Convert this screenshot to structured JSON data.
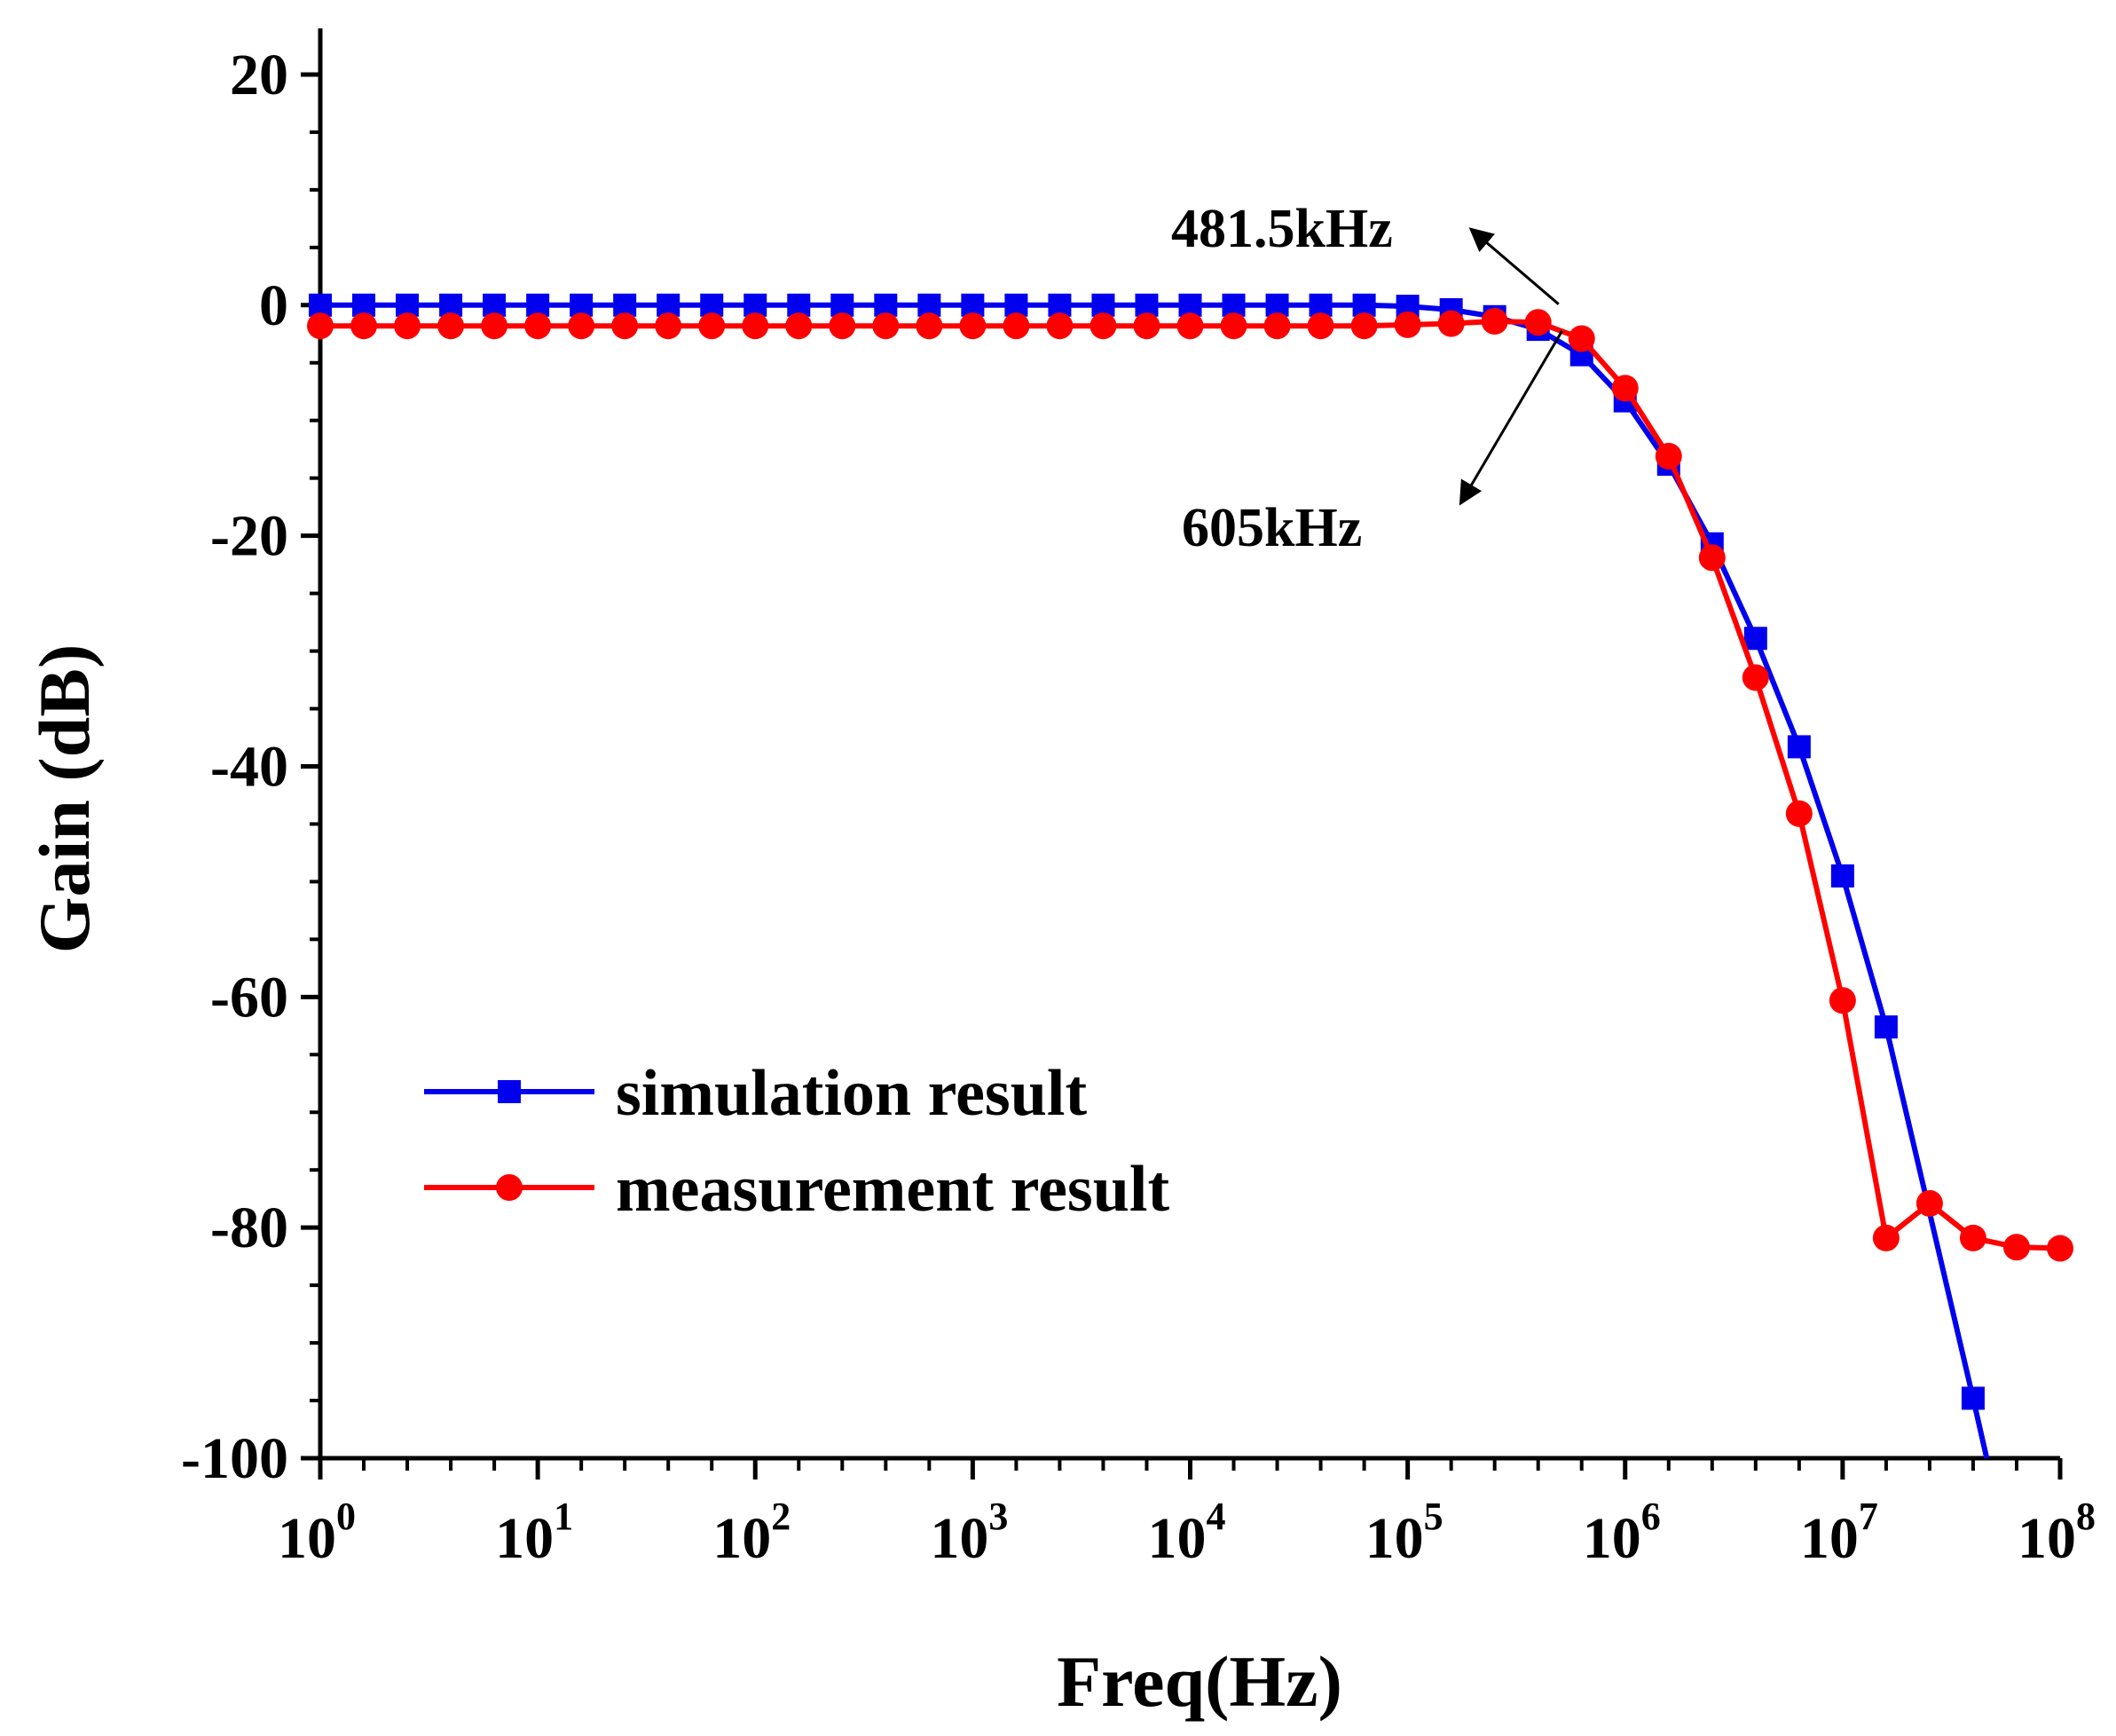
{
  "chart_data": {
    "type": "line",
    "title": "",
    "xlabel": "Freq(Hz)",
    "ylabel": "Gain (dB)",
    "xscale": "log",
    "xlim": [
      1,
      100000000
    ],
    "ylim": [
      -100,
      24
    ],
    "x_tick_exponents": [
      0,
      1,
      2,
      3,
      4,
      5,
      6,
      7,
      8
    ],
    "x_tick_base": "10",
    "y_ticks": [
      20,
      0,
      -20,
      -40,
      -60,
      -80,
      -100
    ],
    "y_tick_labels": [
      "20",
      "0",
      "-20",
      "-40",
      "-60",
      "-80",
      "-100"
    ],
    "grid": false,
    "legend_position": "lower-left",
    "series": [
      {
        "name": "simulation result",
        "color": "#0000ee",
        "marker": "square",
        "x": [
          1,
          1.585,
          2.512,
          3.981,
          6.31,
          10,
          15.85,
          25.12,
          39.81,
          63.1,
          100,
          158.5,
          251.2,
          398.1,
          631,
          1000,
          1585,
          2512,
          3981,
          6310,
          10000,
          15850,
          25120,
          39810,
          63100,
          100000,
          158500,
          251200,
          398100,
          631000,
          1000000,
          1585000,
          2512000,
          3981000,
          6310000,
          10000000,
          15850000,
          39810000
        ],
        "y": [
          0,
          0,
          0,
          0,
          0,
          0,
          0,
          0,
          0,
          0,
          0,
          0,
          0,
          0,
          0,
          0,
          0,
          0,
          0,
          0,
          0,
          0,
          0,
          0,
          0,
          -0.1,
          -0.4,
          -1.0,
          -2.1,
          -4.3,
          -8.3,
          -13.8,
          -20.7,
          -28.9,
          -38.3,
          -49.5,
          -62.6,
          -94.8
        ],
        "line_end": {
          "x": 46000000,
          "y": -100
        }
      },
      {
        "name": "measurement result",
        "color": "#ff0000",
        "marker": "circle",
        "x": [
          1,
          1.585,
          2.512,
          3.981,
          6.31,
          10,
          15.85,
          25.12,
          39.81,
          63.1,
          100,
          158.5,
          251.2,
          398.1,
          631,
          1000,
          1585,
          2512,
          3981,
          6310,
          10000,
          15850,
          25120,
          39810,
          63100,
          100000,
          158500,
          251200,
          398100,
          631000,
          1000000,
          1585000,
          2512000,
          3981000,
          6310000,
          10000000,
          15850000,
          25120000,
          39810000,
          63100000,
          100000000
        ],
        "y": [
          -1.8,
          -1.8,
          -1.8,
          -1.8,
          -1.8,
          -1.8,
          -1.8,
          -1.8,
          -1.8,
          -1.8,
          -1.8,
          -1.8,
          -1.8,
          -1.8,
          -1.8,
          -1.8,
          -1.8,
          -1.8,
          -1.8,
          -1.8,
          -1.8,
          -1.8,
          -1.8,
          -1.8,
          -1.8,
          -1.7,
          -1.6,
          -1.4,
          -1.5,
          -2.9,
          -7.2,
          -13.1,
          -21.9,
          -32.3,
          -44.1,
          -60.3,
          -80.9,
          -77.9,
          -80.9,
          -81.7,
          -81.8
        ]
      }
    ],
    "annotations": [
      {
        "text": "481.5kHz",
        "x": 481500,
        "arrow_tip": {
          "x": 195000,
          "y": 6.6
        }
      },
      {
        "text": "605kHz",
        "x": 605000,
        "arrow_tip": {
          "x": 175000,
          "y": -17.2
        }
      }
    ]
  }
}
